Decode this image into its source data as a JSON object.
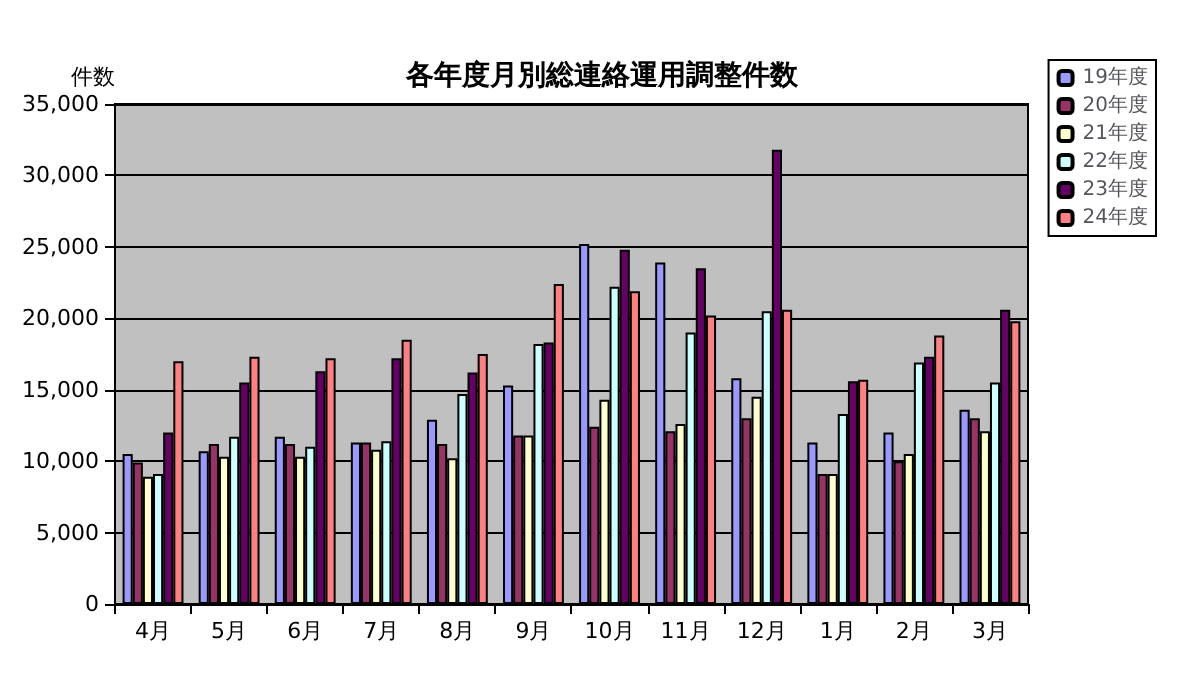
{
  "chart_data": {
    "type": "bar",
    "title": "各年度月別総連絡運用調整件数",
    "ylabel": "件数",
    "categories": [
      "4月",
      "5月",
      "6月",
      "7月",
      "8月",
      "9月",
      "10月",
      "11月",
      "12月",
      "1月",
      "2月",
      "3月"
    ],
    "series": [
      {
        "name": "19年度",
        "color": "#9999ff",
        "values": [
          10500,
          10700,
          11700,
          11300,
          12900,
          15300,
          25200,
          23900,
          15800,
          11300,
          12000,
          13600
        ]
      },
      {
        "name": "20年度",
        "color": "#993366",
        "values": [
          9900,
          11200,
          11200,
          11300,
          11200,
          11800,
          12400,
          12100,
          13000,
          9100,
          10000,
          13000
        ]
      },
      {
        "name": "21年度",
        "color": "#ffffcc",
        "values": [
          8900,
          10300,
          10300,
          10800,
          10200,
          11800,
          14300,
          12600,
          14500,
          9100,
          10500,
          12100
        ]
      },
      {
        "name": "22年度",
        "color": "#ccffff",
        "values": [
          9100,
          11700,
          11000,
          11400,
          14700,
          18200,
          22200,
          19000,
          20500,
          13300,
          16900,
          15500
        ]
      },
      {
        "name": "23年度",
        "color": "#660066",
        "values": [
          12000,
          15500,
          16300,
          17200,
          16200,
          18300,
          24800,
          23500,
          31800,
          15600,
          17300,
          20600
        ]
      },
      {
        "name": "24年度",
        "color": "#ff8080",
        "values": [
          17000,
          17300,
          17200,
          18500,
          17500,
          22400,
          21900,
          20200,
          20600,
          15700,
          18800,
          19800
        ]
      }
    ],
    "ylim": [
      0,
      35000
    ],
    "yticks": [
      0,
      {
        "value": 5000,
        "label": "5,000"
      },
      {
        "value": 10000,
        "label": "10,000"
      },
      {
        "value": 15000,
        "label": "15,000"
      },
      {
        "value": 20000,
        "label": "20,000"
      },
      {
        "value": 25000,
        "label": "25,000"
      },
      {
        "value": 30000,
        "label": "30,000"
      },
      {
        "value": 35000,
        "label": "35,000"
      }
    ],
    "grid": "y",
    "legend": "top right"
  }
}
